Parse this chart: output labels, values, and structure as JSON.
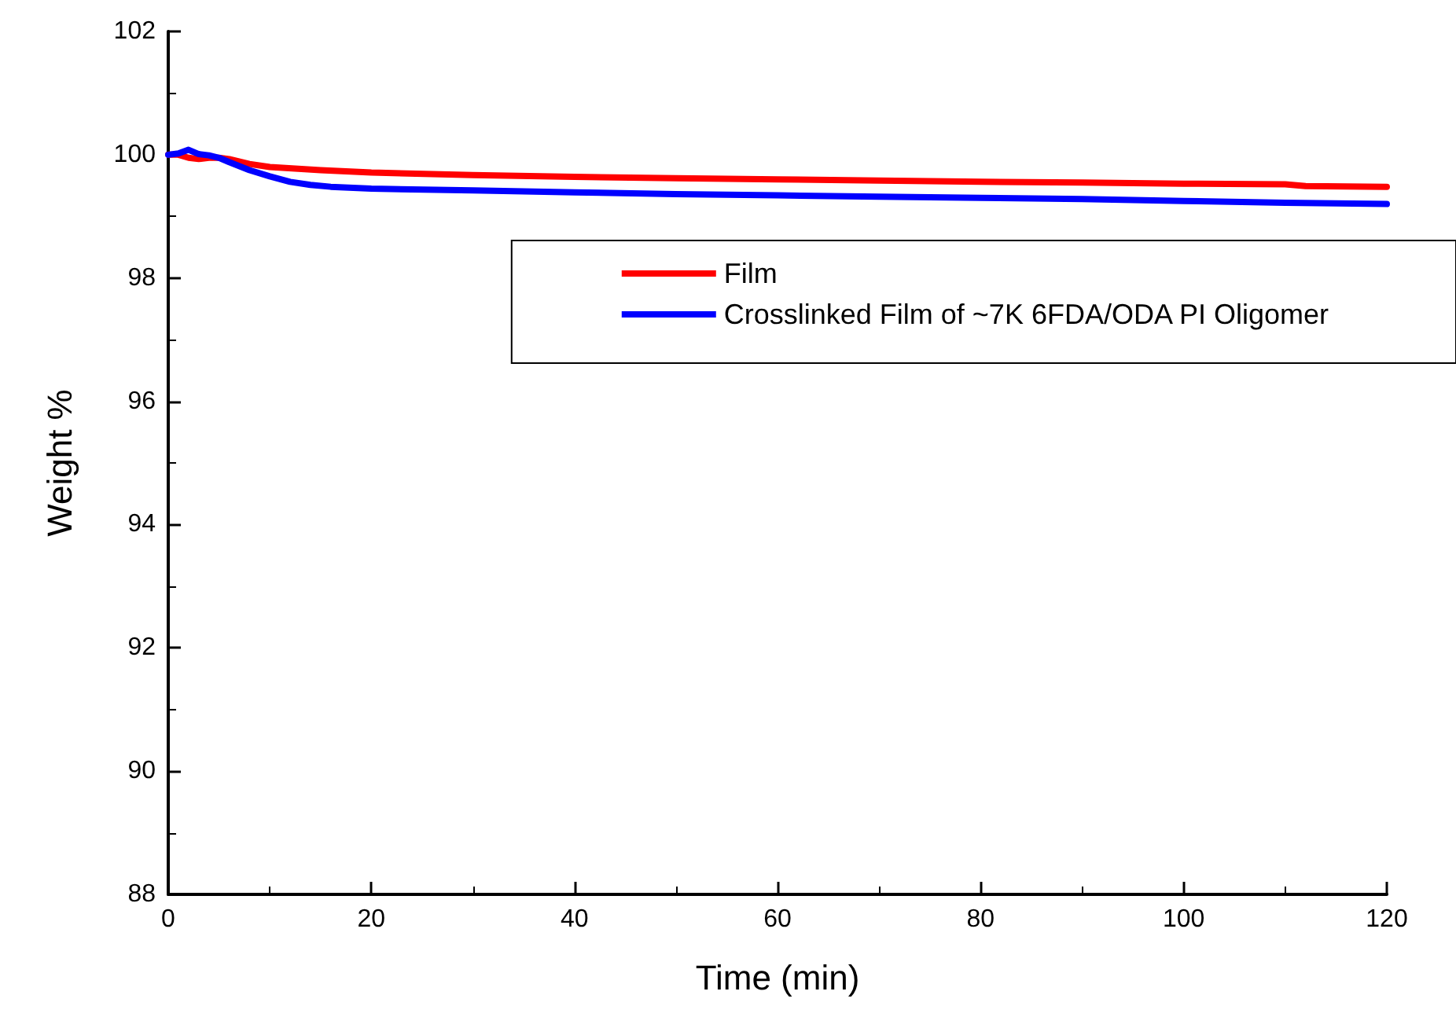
{
  "chart_data": {
    "type": "line",
    "xlabel": "Time (min)",
    "ylabel": "Weight %",
    "xlim": [
      0,
      120
    ],
    "xticks": [
      0,
      20,
      40,
      60,
      80,
      100,
      120
    ],
    "ylim": [
      88,
      102
    ],
    "yticks": [
      88,
      90,
      92,
      94,
      96,
      98,
      100,
      102
    ],
    "grid": false,
    "legend": "top right",
    "marker": "none",
    "line_style": "solid",
    "series": [
      {
        "name": "Film",
        "color": "#ff0000",
        "x": [
          0,
          1,
          2,
          3,
          4,
          5,
          6,
          8,
          10,
          15,
          20,
          30,
          40,
          50,
          60,
          70,
          80,
          90,
          100,
          110,
          112,
          120
        ],
        "values": [
          100,
          100,
          99.95,
          99.93,
          99.95,
          99.95,
          99.93,
          99.85,
          99.8,
          99.75,
          99.71,
          99.67,
          99.64,
          99.62,
          99.6,
          99.58,
          99.56,
          99.55,
          99.53,
          99.52,
          99.49,
          99.48
        ]
      },
      {
        "name": "Crosslinked Film of ~7K 6FDA/ODA PI Oligomer",
        "color": "#0000ff",
        "x": [
          0,
          1,
          2,
          3,
          4,
          5,
          6,
          8,
          10,
          12,
          14,
          16,
          20,
          30,
          40,
          50,
          60,
          70,
          80,
          90,
          100,
          110,
          120
        ],
        "values": [
          100,
          100.02,
          100.08,
          100.01,
          99.99,
          99.95,
          99.88,
          99.75,
          99.65,
          99.56,
          99.51,
          99.48,
          99.45,
          99.42,
          99.39,
          99.36,
          99.34,
          99.32,
          99.3,
          99.28,
          99.25,
          99.22,
          99.2
        ]
      }
    ]
  }
}
